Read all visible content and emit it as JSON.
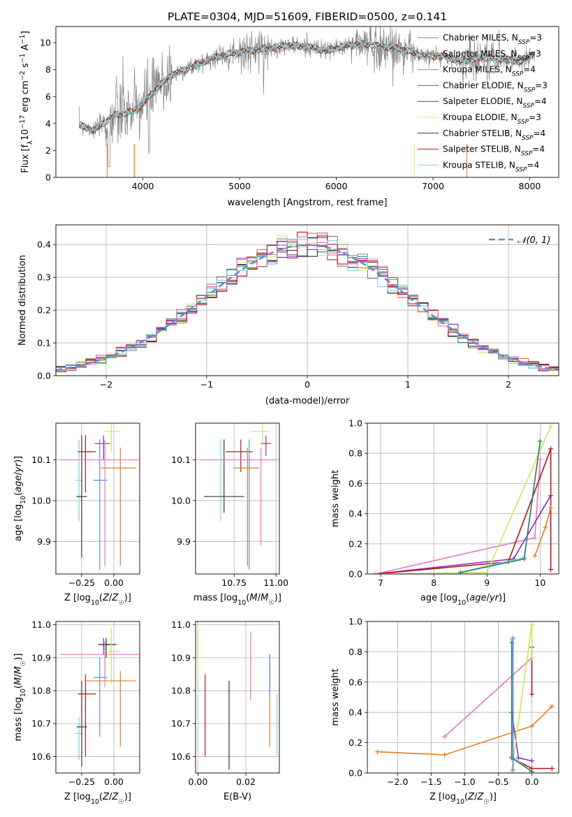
{
  "title": "PLATE=0304, MJD=51609, FIBERID=0500, z=0.141",
  "colors": {
    "gray": "#808080",
    "orange": "#e07b28",
    "teal": "#2e7d66",
    "purple": "#8a2bb5",
    "yellow": "#dde86a",
    "dark": "#333333",
    "red": "#b5121b",
    "cyan": "#7fd3dc",
    "pink": "#e377c2",
    "blue": "#5b8ddb",
    "lime": "#c8e85a"
  },
  "legend": [
    {
      "label": "Chabrier MILES, N",
      "sub": "SSP",
      "suffix": "=3",
      "color": "#808080"
    },
    {
      "label": "Salpeter MILES, N",
      "sub": "SSP",
      "suffix": "=3",
      "color": "#e07b28"
    },
    {
      "label": "Kroupa MILES, N",
      "sub": "SSP",
      "suffix": "=4",
      "color": "#e07b28"
    },
    {
      "label": "Chabrier ELODIE, N",
      "sub": "SSP",
      "suffix": "=3",
      "color": "#2e7d66"
    },
    {
      "label": "Salpeter ELODIE, N",
      "sub": "SSP",
      "suffix": "=4",
      "color": "#8a2bb5"
    },
    {
      "label": "Kroupa ELODIE, N",
      "sub": "SSP",
      "suffix": "=3",
      "color": "#dde86a"
    },
    {
      "label": "Chabrier STELIB, N",
      "sub": "SSP",
      "suffix": "=4",
      "color": "#333333"
    },
    {
      "label": "Salpeter STELIB, N",
      "sub": "SSP",
      "suffix": "=4",
      "color": "#b5121b"
    },
    {
      "label": "Kroupa STELIB, N",
      "sub": "SSP",
      "suffix": "=4",
      "color": "#7fd3dc"
    }
  ],
  "normal_legend": "𝒩(0, 1)",
  "chart_data": [
    {
      "id": "spectrum",
      "type": "line",
      "xlabel": "wavelength [Angstrom, rest frame]",
      "ylabel": "Flux [f_λ10^-17 erg cm^-2 s^-1 A^-1]",
      "xlim": [
        3100,
        8300
      ],
      "ylim": [
        0,
        11.2
      ],
      "xticks": [
        4000,
        5000,
        6000,
        7000,
        8000
      ],
      "yticks": [
        0,
        2,
        4,
        6,
        8,
        10
      ],
      "data_range": [
        3340,
        8050
      ],
      "continuum": [
        [
          3340,
          3.9
        ],
        [
          3500,
          3.5
        ],
        [
          3700,
          4.6
        ],
        [
          3900,
          4.9
        ],
        [
          4000,
          5.4
        ],
        [
          4150,
          6.7
        ],
        [
          4300,
          7.6
        ],
        [
          4500,
          8.2
        ],
        [
          4700,
          8.8
        ],
        [
          4900,
          9.2
        ],
        [
          5100,
          9.4
        ],
        [
          5300,
          9.6
        ],
        [
          5500,
          9.8
        ],
        [
          5700,
          9.7
        ],
        [
          5900,
          9.4
        ],
        [
          6100,
          9.8
        ],
        [
          6300,
          9.9
        ],
        [
          6500,
          9.7
        ],
        [
          6700,
          9.5
        ],
        [
          6900,
          9.0
        ],
        [
          7100,
          9.0
        ],
        [
          7300,
          8.6
        ],
        [
          7500,
          8.9
        ],
        [
          7700,
          8.8
        ],
        [
          7900,
          8.6
        ],
        [
          8050,
          9.2
        ]
      ]
    },
    {
      "id": "residuals",
      "type": "histogram",
      "xlabel": "(data-model)/error",
      "ylabel": "Normed distribution",
      "xlim": [
        -2.5,
        2.5
      ],
      "ylim": [
        0,
        0.46
      ],
      "xticks": [
        -2,
        -1,
        0,
        1,
        2
      ],
      "yticks": [
        0.0,
        0.1,
        0.2,
        0.3,
        0.4
      ],
      "bin_width": 0.1,
      "n_series": 9,
      "grid": true,
      "legend": "top-right"
    },
    {
      "id": "age-vs-Z",
      "type": "scatter",
      "xlabel": "Z [log10(Z/Z☉)]",
      "ylabel": "age  [log10(age/yr)]",
      "xlim": [
        -0.45,
        0.2
      ],
      "ylim": [
        9.82,
        10.19
      ],
      "xticks": [
        -0.25,
        0.0
      ],
      "yticks": [
        9.9,
        10.0,
        10.1
      ],
      "grid": true,
      "points": [
        {
          "x": -0.27,
          "xe": [
            0.03,
            0.03
          ],
          "y": 10.05,
          "ye": [
            0.1,
            0.1
          ],
          "color": "#7fd3dc"
        },
        {
          "x": -0.25,
          "xe": [
            0.04,
            0.04
          ],
          "y": 10.01,
          "ye": [
            0.15,
            0.15
          ],
          "color": "#333333"
        },
        {
          "x": -0.22,
          "xe": [
            0.06,
            0.08
          ],
          "y": 10.12,
          "ye": [
            0.1,
            0.04
          ],
          "color": "#b5121b"
        },
        {
          "x": -0.11,
          "xe": [
            0.05,
            0.06
          ],
          "y": 10.05,
          "ye": [
            0.22,
            0.1
          ],
          "color": "#5b8ddb"
        },
        {
          "x": -0.08,
          "xe": [
            0.07,
            0.05
          ],
          "y": 10.14,
          "ye": [
            0.04,
            0.02
          ],
          "color": "#8a2bb5"
        },
        {
          "x": -0.07,
          "xe": [
            0.35,
            0.27
          ],
          "y": 10.1,
          "ye": [
            0.26,
            0.05
          ],
          "color": "#e377c2"
        },
        {
          "x": -0.02,
          "xe": [
            0.06,
            0.07
          ],
          "y": 10.17,
          "ye": [
            0.05,
            0.02
          ],
          "color": "#c8e85a"
        },
        {
          "x": 0.05,
          "xe": [
            0.15,
            0.12
          ],
          "y": 10.08,
          "ye": [
            0.24,
            0.05
          ],
          "color": "#e07b28"
        }
      ]
    },
    {
      "id": "age-vs-mass",
      "type": "scatter",
      "xlabel": "mass [log10(M/M☉)]",
      "ylabel": "",
      "xlim": [
        10.52,
        11.02
      ],
      "ylim": [
        9.82,
        10.19
      ],
      "xticks": [
        10.75,
        11.0
      ],
      "yticks": [
        9.9,
        10.0,
        10.1
      ],
      "grid": true,
      "points": [
        {
          "x": 10.67,
          "xe": [
            0.1,
            0.04
          ],
          "y": 10.1,
          "ye": [
            0.15,
            0.05
          ],
          "color": "#7fd3dc"
        },
        {
          "x": 10.69,
          "xe": [
            0.12,
            0.12
          ],
          "y": 10.01,
          "ye": [
            0.04,
            0.14
          ],
          "color": "#333333"
        },
        {
          "x": 10.79,
          "xe": [
            0.09,
            0.07
          ],
          "y": 10.12,
          "ye": [
            0.05,
            0.03
          ],
          "color": "#b5121b"
        },
        {
          "x": 10.83,
          "xe": [
            0.08,
            0.07
          ],
          "y": 10.08,
          "ye": [
            0.24,
            0.05
          ],
          "color": "#e07b28"
        },
        {
          "x": 10.84,
          "xe": [
            0.04,
            0.02
          ],
          "y": 10.1,
          "ye": [
            0.27,
            0.05
          ],
          "color": "#5b8ddb"
        },
        {
          "x": 10.91,
          "xe": [
            0.37,
            0.09
          ],
          "y": 10.1,
          "ye": [
            0.21,
            0.03
          ],
          "color": "#e377c2"
        },
        {
          "x": 10.94,
          "xe": [
            0.03,
            0.03
          ],
          "y": 10.14,
          "ye": [
            0.03,
            0.02
          ],
          "color": "#8a2bb5"
        },
        {
          "x": 10.92,
          "xe": [
            0.07,
            0.04
          ],
          "y": 10.17,
          "ye": [
            0.03,
            0.02
          ],
          "color": "#c8e85a"
        }
      ]
    },
    {
      "id": "mass-weight-vs-age",
      "type": "line",
      "xlabel": "age  [log10(age/yr)]",
      "ylabel": "mass weight",
      "xlim": [
        6.75,
        10.35
      ],
      "ylim": [
        0,
        1.0
      ],
      "xticks": [
        7,
        8,
        9,
        10
      ],
      "yticks": [
        0.0,
        0.2,
        0.4,
        0.6,
        0.8,
        1.0
      ],
      "grid": true,
      "series": [
        {
          "color": "#e377c2",
          "x": [
            6.9,
            9.9,
            10.0
          ],
          "y": [
            0.0,
            0.24,
            0.76
          ]
        },
        {
          "color": "#8a2bb5",
          "x": [
            6.9,
            9.5,
            10.2
          ],
          "y": [
            0.0,
            0.1,
            0.52
          ]
        },
        {
          "color": "#b5121b",
          "x": [
            6.9,
            9.4,
            10.2,
            10.2
          ],
          "y": [
            0.0,
            0.08,
            0.83,
            0.03
          ]
        },
        {
          "color": "#c8e85a",
          "x": [
            6.9,
            9.0,
            10.2
          ],
          "y": [
            0.0,
            0.01,
            0.98
          ]
        },
        {
          "color": "#7fd3dc",
          "x": [
            8.5,
            9.7,
            10.0
          ],
          "y": [
            0.01,
            0.11,
            0.88
          ]
        },
        {
          "color": "#2e7d66",
          "x": [
            8.5,
            9.7,
            10.0
          ],
          "y": [
            0.01,
            0.1,
            0.88
          ]
        },
        {
          "color": "#e07b28",
          "x": [
            9.9,
            10.1,
            10.2
          ],
          "y": [
            0.12,
            0.31,
            0.44
          ]
        }
      ]
    },
    {
      "id": "mass-vs-Z",
      "type": "scatter",
      "xlabel": "Z [log10(Z/Z☉)]",
      "ylabel": "mass [log10(M/M☉)]",
      "xlim": [
        -0.45,
        0.2
      ],
      "ylim": [
        10.55,
        11.01
      ],
      "xticks": [
        -0.25,
        0.0
      ],
      "yticks": [
        10.6,
        10.7,
        10.8,
        10.9,
        11.0
      ],
      "grid": true,
      "points": [
        {
          "x": -0.27,
          "xe": [
            0.03,
            0.03
          ],
          "y": 10.67,
          "ye": [
            0.08,
            0.05
          ],
          "color": "#7fd3dc"
        },
        {
          "x": -0.25,
          "xe": [
            0.04,
            0.04
          ],
          "y": 10.69,
          "ye": [
            0.12,
            0.14
          ],
          "color": "#333333"
        },
        {
          "x": -0.22,
          "xe": [
            0.06,
            0.08
          ],
          "y": 10.79,
          "ye": [
            0.19,
            0.06
          ],
          "color": "#b5121b"
        },
        {
          "x": -0.11,
          "xe": [
            0.05,
            0.06
          ],
          "y": 10.84,
          "ye": [
            0.18,
            0.06
          ],
          "color": "#5b8ddb"
        },
        {
          "x": -0.08,
          "xe": [
            0.04,
            0.06
          ],
          "y": 10.94,
          "ye": [
            0.03,
            0.02
          ],
          "color": "#8a2bb5"
        },
        {
          "x": -0.06,
          "xe": [
            0.06,
            0.08
          ],
          "y": 10.94,
          "ye": [
            0.04,
            0.02
          ],
          "color": "#333333"
        },
        {
          "x": -0.07,
          "xe": [
            0.35,
            0.27
          ],
          "y": 10.91,
          "ye": [
            0.1,
            0.04
          ],
          "color": "#e377c2"
        },
        {
          "x": -0.02,
          "xe": [
            0.06,
            0.07
          ],
          "y": 10.92,
          "ye": [
            0.1,
            0.07
          ],
          "color": "#c8e85a"
        },
        {
          "x": 0.05,
          "xe": [
            0.28,
            0.12
          ],
          "y": 10.83,
          "ye": [
            0.2,
            0.03
          ],
          "color": "#e07b28"
        }
      ]
    },
    {
      "id": "mass-vs-ebv",
      "type": "scatter",
      "xlabel": "E(B-V)",
      "ylabel": "",
      "xlim": [
        -0.001,
        0.034
      ],
      "ylim": [
        10.55,
        11.01
      ],
      "xticks": [
        0.0,
        0.02
      ],
      "yticks": [
        10.6,
        10.7,
        10.8,
        10.9,
        11.0
      ],
      "grid": true,
      "points": [
        {
          "x": 0.0,
          "y": 10.94,
          "ye": [
            0.04,
            0.04
          ],
          "color": "#8a2bb5"
        },
        {
          "x": 0.0,
          "y": 10.92,
          "ye": [
            0.08,
            0.08
          ],
          "color": "#c8e85a"
        },
        {
          "x": 0.003,
          "y": 10.72,
          "ye": [
            0.12,
            0.13
          ],
          "color": "#b5121b"
        },
        {
          "x": 0.013,
          "y": 10.7,
          "ye": [
            0.14,
            0.13
          ],
          "color": "#333333"
        },
        {
          "x": 0.022,
          "y": 10.87,
          "ye": [
            0.1,
            0.11
          ],
          "color": "#e377c2"
        },
        {
          "x": 0.03,
          "y": 10.77,
          "ye": [
            0.14,
            0.14
          ],
          "color": "#e07b28"
        },
        {
          "x": 0.03,
          "y": 10.85,
          "ye": [
            0.06,
            0.06
          ],
          "color": "#5b8ddb"
        },
        {
          "x": 0.033,
          "y": 10.7,
          "ye": [
            0.1,
            0.09
          ],
          "color": "#7fd3dc"
        }
      ]
    },
    {
      "id": "mass-weight-vs-Z",
      "type": "line",
      "xlabel": "Z [log10(Z/Z☉)]",
      "ylabel": "mass weight",
      "xlim": [
        -2.45,
        0.4
      ],
      "ylim": [
        0,
        1.0
      ],
      "xticks": [
        -2.0,
        -1.5,
        -1.0,
        -0.5,
        0.0
      ],
      "yticks": [
        0.0,
        0.2,
        0.4,
        0.6,
        0.8,
        1.0
      ],
      "grid": true,
      "series": [
        {
          "color": "#e07b28",
          "x": [
            -2.3,
            -1.3,
            0.0,
            0.3
          ],
          "y": [
            0.14,
            0.12,
            0.31,
            0.44
          ]
        },
        {
          "color": "#e377c2",
          "x": [
            -1.3,
            0.0
          ],
          "y": [
            0.24,
            0.76
          ]
        },
        {
          "color": "#8a2bb5",
          "x": [
            -0.3,
            -0.2,
            0.0
          ],
          "y": [
            0.4,
            0.1,
            0.08
          ]
        },
        {
          "color": "#b5121b",
          "x": [
            -0.3,
            0.0,
            0.3
          ],
          "y": [
            0.1,
            0.03,
            0.03
          ]
        },
        {
          "color": "#b5121b",
          "x": [
            0.0,
            0.0
          ],
          "y": [
            0.52,
            0.83
          ]
        },
        {
          "color": "#c8e85a",
          "x": [
            -0.3,
            0.0,
            0.0
          ],
          "y": [
            0.01,
            0.98,
            0.76
          ]
        },
        {
          "color": "#7fd3dc",
          "x": [
            -0.3,
            -0.3,
            0.0
          ],
          "y": [
            0.88,
            0.11,
            0.01
          ]
        },
        {
          "color": "#2e7d66",
          "x": [
            -0.3,
            -0.3,
            0.0
          ],
          "y": [
            0.86,
            0.1,
            0.01
          ]
        },
        {
          "color": "#5b8ddb",
          "x": [
            -0.28,
            -0.28
          ],
          "y": [
            0.02,
            0.89
          ]
        }
      ]
    }
  ]
}
